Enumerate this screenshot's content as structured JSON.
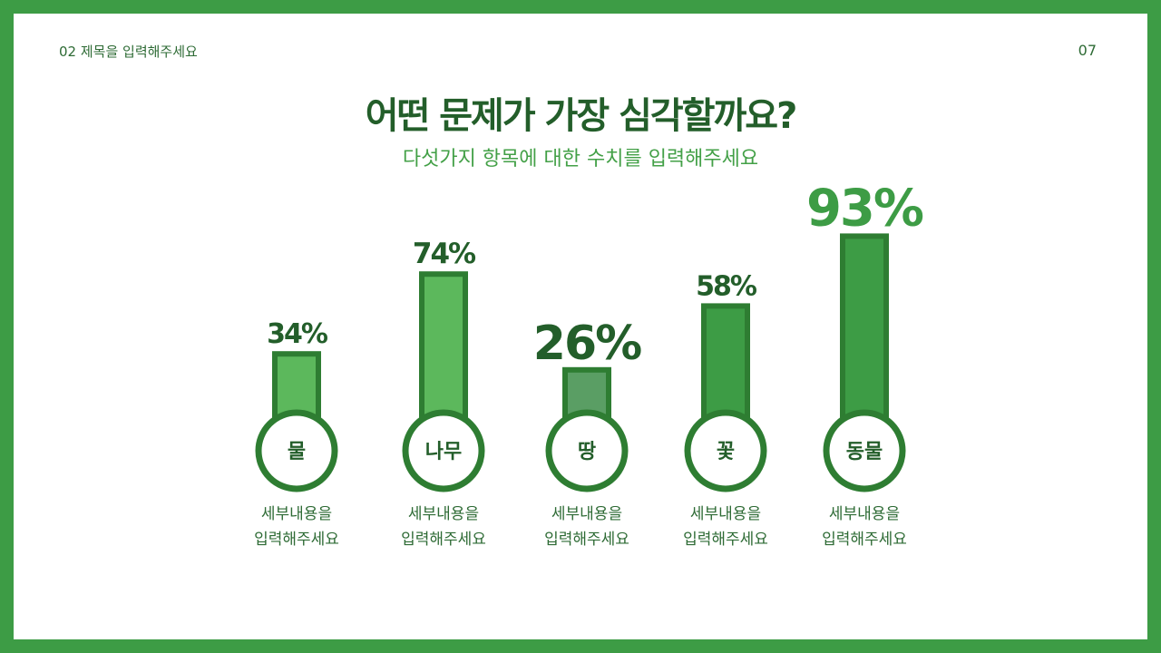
{
  "header": {
    "section_label": "02 제목을 입력해주세요",
    "page_number": "07"
  },
  "title": "어떤 문제가 가장 심각할까요?",
  "subtitle": "다섯가지 항목에 대한 수치를 입력해주세요",
  "colors": {
    "border": "#3d9c45",
    "dark_green": "#2e7d32",
    "title_green": "#235e2a"
  },
  "chart_data": {
    "type": "bar",
    "categories": [
      "물",
      "나무",
      "땅",
      "꽃",
      "동물"
    ],
    "values": [
      34,
      74,
      26,
      58,
      93
    ],
    "value_labels": [
      "34%",
      "74%",
      "26%",
      "58%",
      "93%"
    ],
    "ylim": [
      0,
      100
    ],
    "bar_colors": [
      "#5cb85c",
      "#5cb85c",
      "#5a9e64",
      "#3d9c45",
      "#3d9c45"
    ],
    "descriptions": [
      [
        "세부내용을",
        "입력해주세요"
      ],
      [
        "세부내용을",
        "입력해주세요"
      ],
      [
        "세부내용을",
        "입력해주세요"
      ],
      [
        "세부내용을",
        "입력해주세요"
      ],
      [
        "세부내용을",
        "입력해주세요"
      ]
    ]
  }
}
